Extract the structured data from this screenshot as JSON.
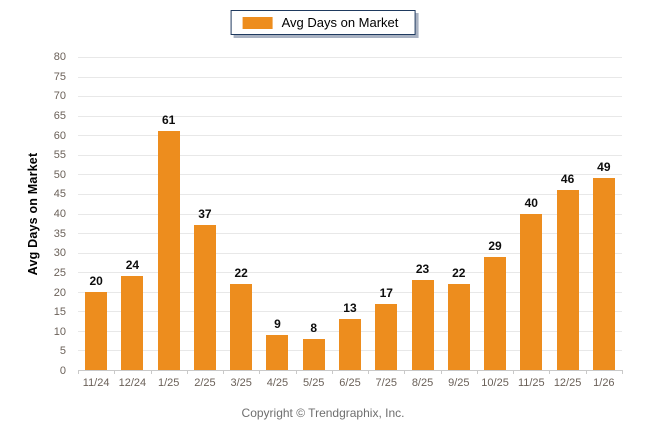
{
  "legend": {
    "label": "Avg Days on Market",
    "swatch_color": "#ED8D1E"
  },
  "footer": {
    "copyright": "Copyright © Trendgraphix, Inc."
  },
  "chart_data": {
    "type": "bar",
    "title": "",
    "categories": [
      "11/24",
      "12/24",
      "1/25",
      "2/25",
      "3/25",
      "4/25",
      "5/25",
      "6/25",
      "7/25",
      "8/25",
      "9/25",
      "10/25",
      "11/25",
      "12/25",
      "1/26"
    ],
    "values": [
      20,
      24,
      61,
      37,
      22,
      9,
      8,
      13,
      17,
      23,
      22,
      29,
      40,
      46,
      49
    ],
    "xlabel": "",
    "ylabel": "Avg Days on Market",
    "ylim": [
      0,
      80
    ],
    "ytick_step": 5,
    "bar_color": "#ED8D1E",
    "grid": "horizontal",
    "legend_position": "top-center",
    "value_labels": true
  }
}
